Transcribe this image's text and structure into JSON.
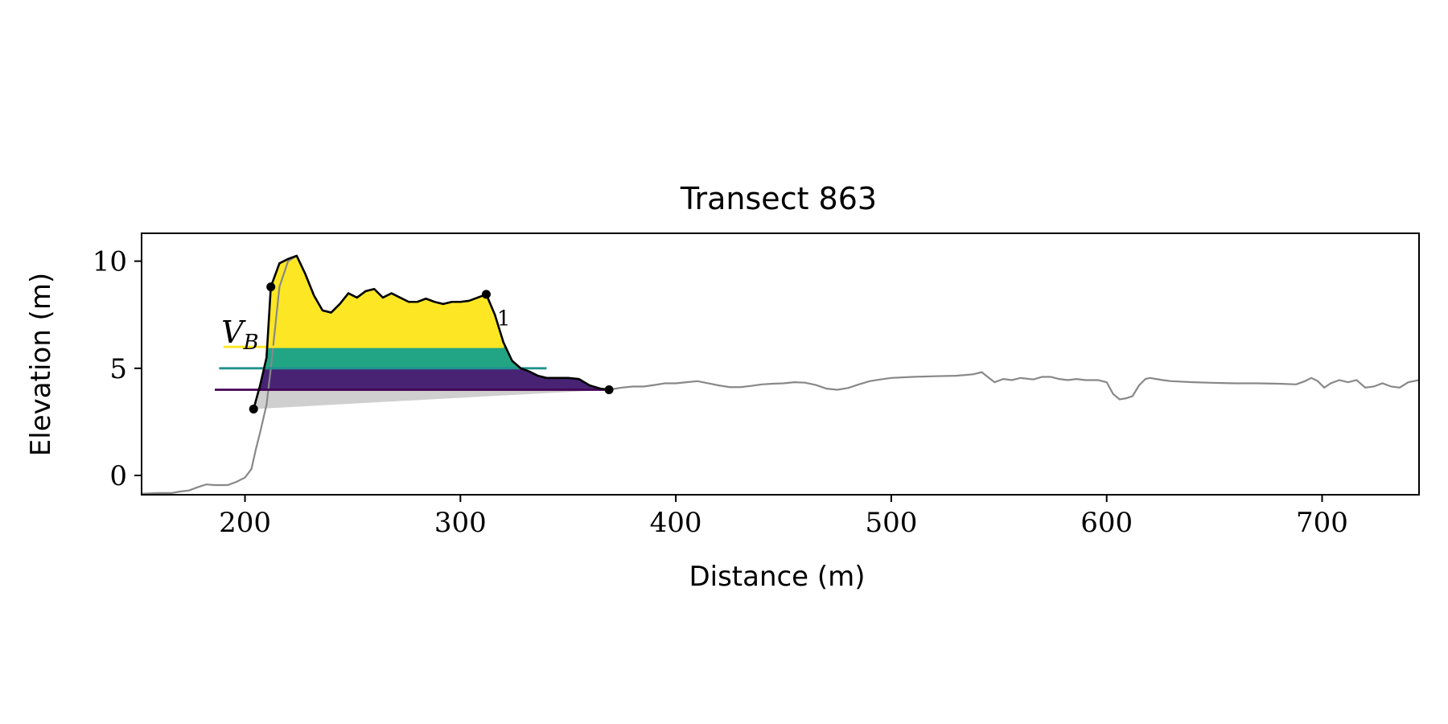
{
  "chart_data": {
    "type": "line",
    "title": "Transect 863",
    "xlabel": "Distance (m)",
    "ylabel": "Elevation (m)",
    "xlim": [
      152,
      745
    ],
    "ylim": [
      -0.9,
      11.3
    ],
    "xticks": [
      200,
      300,
      400,
      500,
      600,
      700
    ],
    "yticks": [
      0,
      5,
      10
    ],
    "grid": false,
    "legend": "none",
    "colors": {
      "profile": "#888888",
      "dune": "#000000",
      "wedge": "#cfcfcf",
      "band_low": "#482374",
      "band_mid": "#21a585",
      "band_high": "#fde725",
      "line_low": "#440154",
      "line_mid": "#21918c",
      "line_high": "#fde725"
    },
    "profile": {
      "x": [
        152,
        160,
        166,
        170,
        174,
        178,
        182,
        186,
        188,
        192,
        196,
        200,
        203,
        205,
        207,
        210,
        212,
        216,
        220,
        224,
        228,
        232,
        236,
        240,
        244,
        248,
        252,
        256,
        260,
        264,
        268,
        272,
        276,
        280,
        284,
        288,
        292,
        296,
        300,
        304,
        308,
        312,
        316,
        320,
        324,
        328,
        332,
        336,
        340,
        345,
        350,
        355,
        360,
        365,
        369,
        375,
        380,
        385,
        390,
        395,
        400,
        405,
        410,
        415,
        420,
        425,
        430,
        435,
        440,
        445,
        450,
        455,
        460,
        465,
        470,
        475,
        480,
        485,
        490,
        495,
        500,
        510,
        520,
        530,
        538,
        542,
        546,
        548,
        552,
        556,
        560,
        566,
        570,
        574,
        578,
        582,
        586,
        590,
        596,
        600,
        603,
        606,
        609,
        612,
        615,
        618,
        620,
        623,
        626,
        630,
        640,
        650,
        660,
        670,
        680,
        688,
        692,
        695,
        698,
        701,
        704,
        708,
        712,
        716,
        720,
        724,
        728,
        732,
        736,
        740,
        745
      ],
      "y": [
        -0.85,
        -0.82,
        -0.82,
        -0.75,
        -0.7,
        -0.55,
        -0.42,
        -0.45,
        -0.45,
        -0.45,
        -0.3,
        -0.1,
        0.3,
        1.2,
        2.0,
        3.3,
        5.0,
        8.8,
        10.0,
        10.25,
        9.4,
        8.4,
        7.7,
        7.6,
        8.0,
        8.5,
        8.3,
        8.6,
        8.7,
        8.3,
        8.5,
        8.3,
        8.1,
        8.1,
        8.25,
        8.1,
        8.0,
        8.1,
        8.1,
        8.15,
        8.3,
        8.45,
        7.5,
        6.2,
        5.35,
        5.0,
        4.85,
        4.65,
        4.55,
        4.55,
        4.55,
        4.5,
        4.2,
        4.05,
        4.0,
        4.1,
        4.15,
        4.15,
        4.22,
        4.3,
        4.3,
        4.35,
        4.4,
        4.3,
        4.2,
        4.12,
        4.12,
        4.18,
        4.25,
        4.28,
        4.3,
        4.35,
        4.33,
        4.22,
        4.05,
        4.0,
        4.08,
        4.25,
        4.4,
        4.48,
        4.55,
        4.6,
        4.63,
        4.65,
        4.72,
        4.82,
        4.5,
        4.35,
        4.5,
        4.45,
        4.55,
        4.48,
        4.6,
        4.6,
        4.5,
        4.45,
        4.5,
        4.45,
        4.45,
        4.35,
        3.8,
        3.55,
        3.6,
        3.7,
        4.2,
        4.5,
        4.55,
        4.5,
        4.45,
        4.4,
        4.35,
        4.32,
        4.3,
        4.3,
        4.28,
        4.25,
        4.4,
        4.55,
        4.4,
        4.1,
        4.3,
        4.45,
        4.35,
        4.45,
        4.1,
        4.15,
        4.3,
        4.15,
        4.1,
        4.35,
        4.45
      ]
    },
    "dune_profile": {
      "x": [
        204,
        207,
        210,
        212,
        216,
        220,
        224,
        228,
        232,
        236,
        240,
        244,
        248,
        252,
        256,
        260,
        264,
        268,
        272,
        276,
        280,
        284,
        288,
        292,
        296,
        300,
        304,
        308,
        312,
        316,
        320,
        324,
        328,
        332,
        336,
        340,
        345,
        350,
        355,
        360,
        365,
        369
      ],
      "y": [
        3.1,
        4.2,
        5.5,
        8.8,
        9.9,
        10.1,
        10.25,
        9.4,
        8.4,
        7.7,
        7.6,
        8.0,
        8.5,
        8.3,
        8.6,
        8.7,
        8.3,
        8.5,
        8.3,
        8.1,
        8.1,
        8.25,
        8.1,
        8.0,
        8.1,
        8.1,
        8.15,
        8.3,
        8.45,
        7.5,
        6.2,
        5.35,
        5.0,
        4.85,
        4.65,
        4.55,
        4.55,
        4.55,
        4.5,
        4.2,
        4.05,
        4.0
      ]
    },
    "wedge_base": {
      "x": [
        204,
        369
      ],
      "y": [
        3.1,
        4.0
      ]
    },
    "elevation_bands": [
      {
        "low": 4.0,
        "high": 5.0
      },
      {
        "low": 5.0,
        "high": 6.0
      },
      {
        "low": 6.0,
        "high": 11.0
      }
    ],
    "level_lines": [
      {
        "y": 4.0,
        "x": [
          186,
          369
        ]
      },
      {
        "y": 5.0,
        "x": [
          188,
          340
        ]
      },
      {
        "y": 6.0,
        "x": [
          190,
          320
        ]
      }
    ],
    "points": [
      {
        "x": 204,
        "y": 3.1
      },
      {
        "x": 212,
        "y": 8.8
      },
      {
        "x": 312,
        "y": 8.45
      },
      {
        "x": 369,
        "y": 4.0
      }
    ],
    "annotations": [
      {
        "text": "V",
        "sub": "B",
        "x": 189,
        "y": 6.2
      },
      {
        "text": "1",
        "x": 317,
        "y": 7.0
      }
    ]
  }
}
